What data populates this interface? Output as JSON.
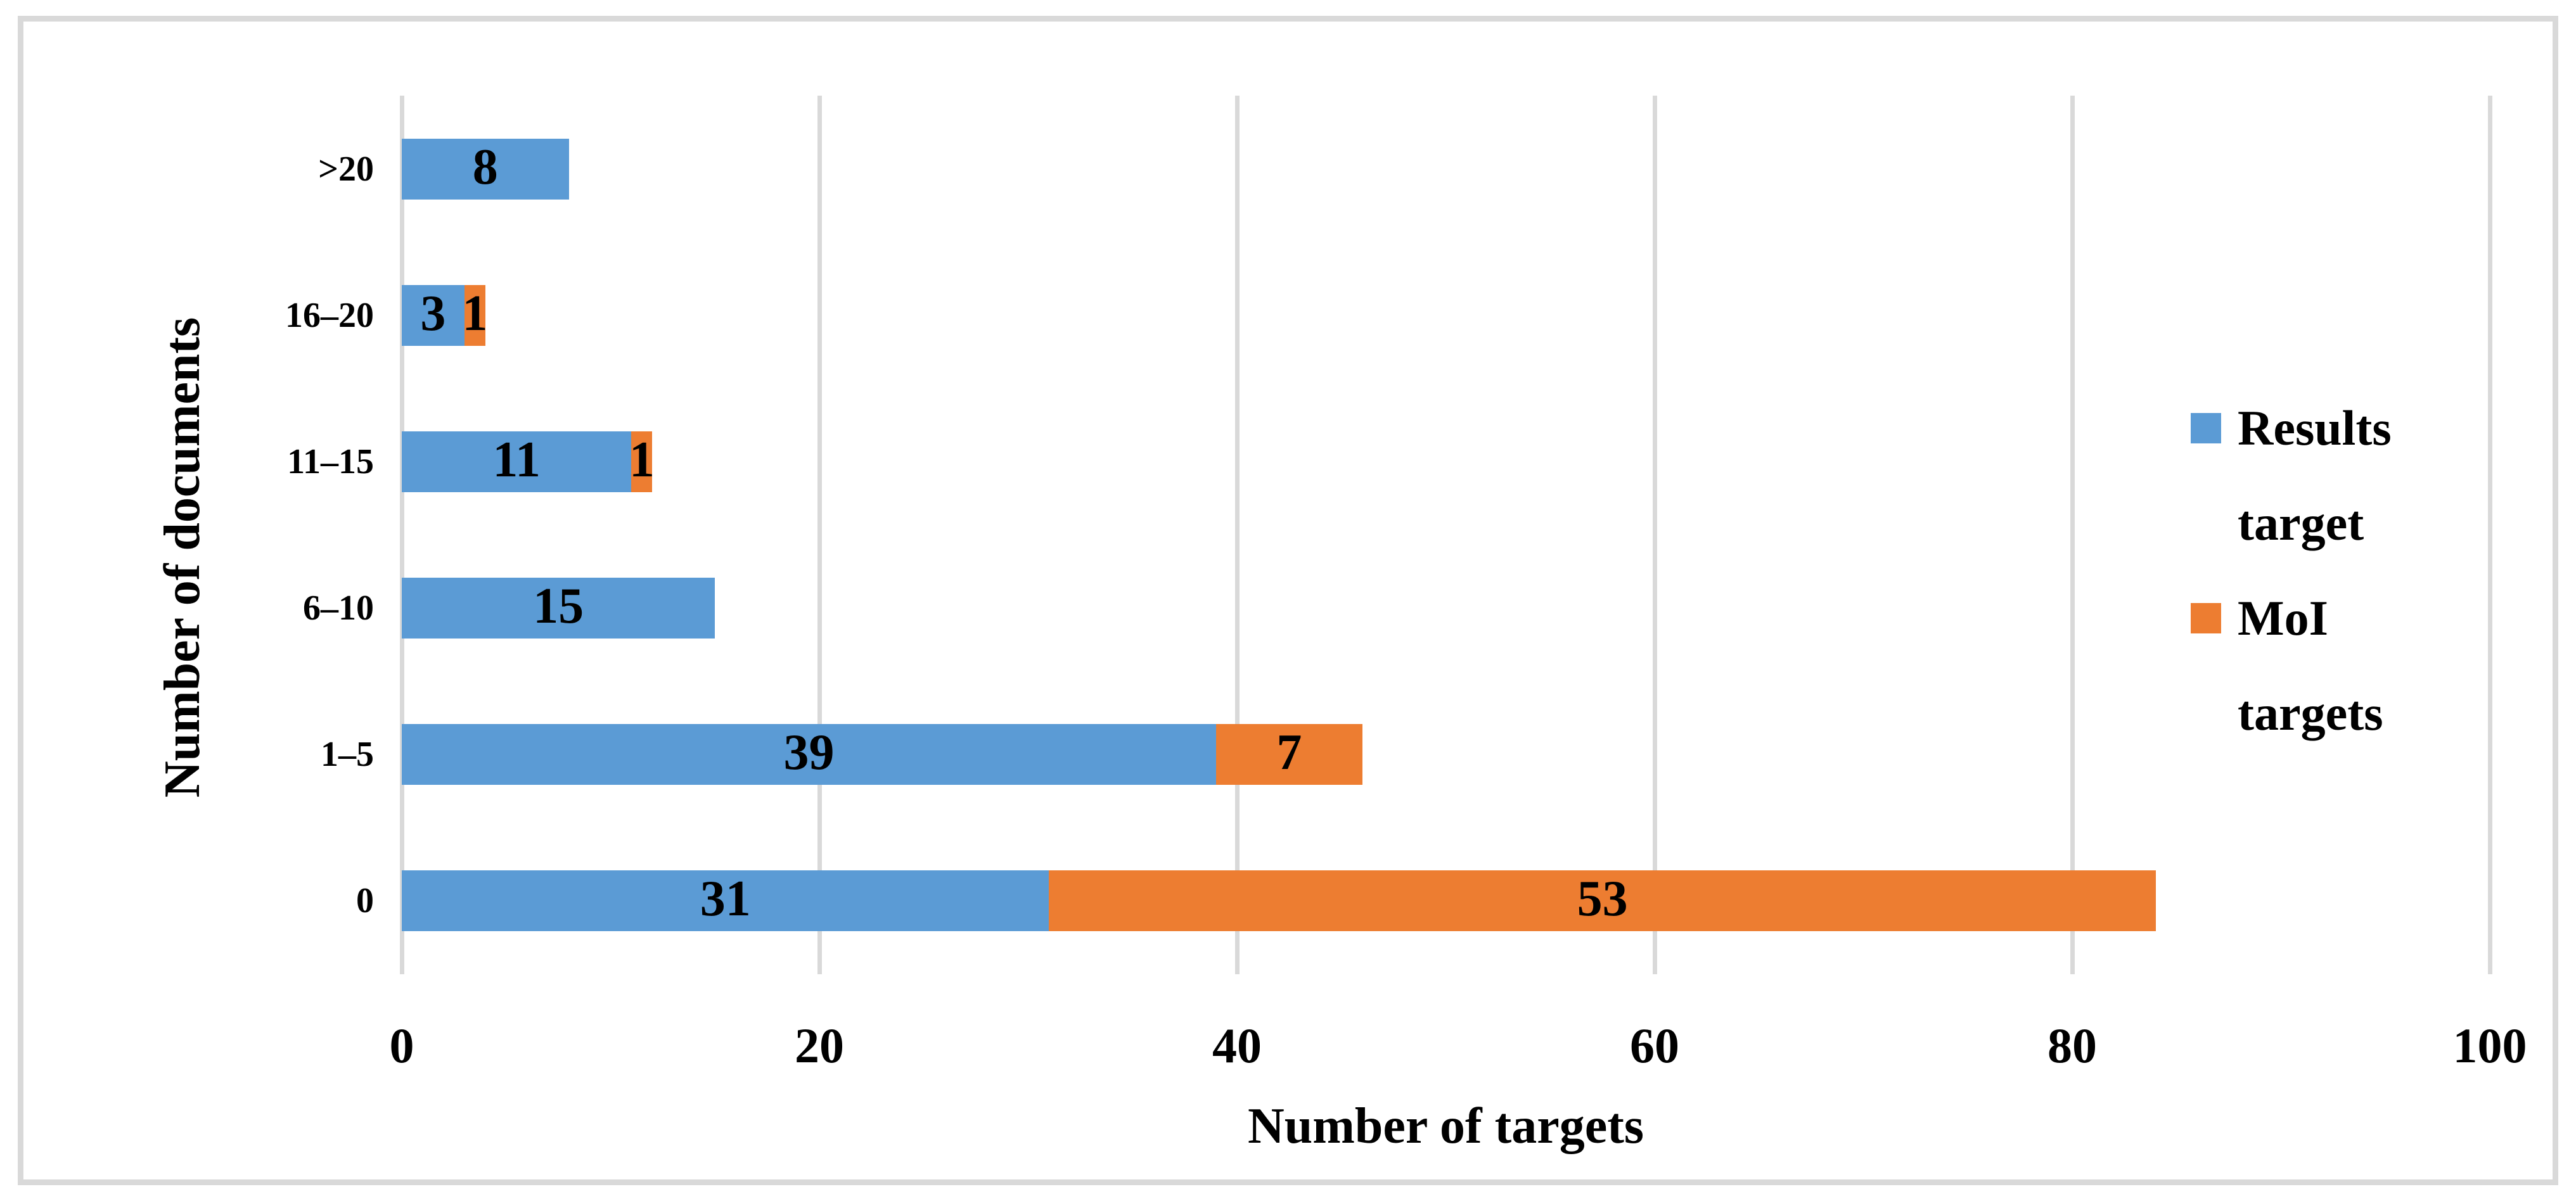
{
  "chart_data": {
    "type": "bar",
    "orientation": "horizontal",
    "stacked": true,
    "title": "",
    "xlabel": "Number of targets",
    "ylabel": "Number of documents",
    "categories": [
      ">20",
      "16–20",
      "11–15",
      "6–10",
      "1–5",
      "0"
    ],
    "series": [
      {
        "name": "Results target",
        "color": "#5b9bd5",
        "values": [
          8,
          3,
          11,
          15,
          39,
          31
        ]
      },
      {
        "name": "MoI targets",
        "color": "#ed7d31",
        "values": [
          0,
          1,
          1,
          0,
          7,
          53
        ]
      }
    ],
    "xlim": [
      0,
      100
    ],
    "xticks": [
      0,
      20,
      40,
      60,
      80,
      100
    ],
    "grid": "vertical",
    "gridline_color": "#d9d9d9",
    "frame_color": "#d9d9d9",
    "text_color": "#000000",
    "legend_position": "right",
    "data_labels": "inside-center"
  }
}
